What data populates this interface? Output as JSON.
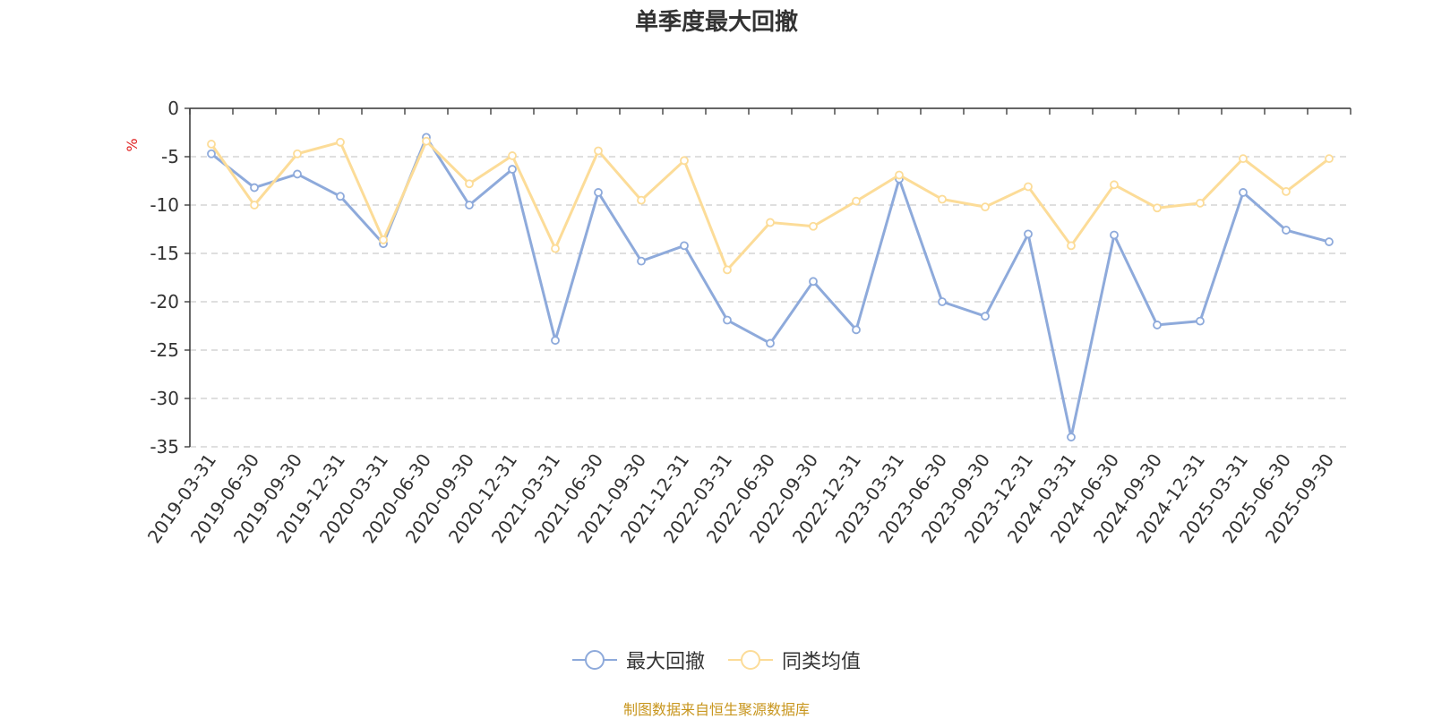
{
  "chart_data": {
    "type": "line",
    "title": "单季度最大回撤",
    "ylabel": "%",
    "ylim": [
      -35,
      0
    ],
    "yticks": [
      0,
      -5,
      -10,
      -15,
      -20,
      -25,
      -30,
      -35
    ],
    "grid": true,
    "legend_position": "bottom-center",
    "categories": [
      "2019-03-31",
      "2019-06-30",
      "2019-09-30",
      "2019-12-31",
      "2020-03-31",
      "2020-06-30",
      "2020-09-30",
      "2020-12-31",
      "2021-03-31",
      "2021-06-30",
      "2021-09-30",
      "2021-12-31",
      "2022-03-31",
      "2022-06-30",
      "2022-09-30",
      "2022-12-31",
      "2023-03-31",
      "2023-06-30",
      "2023-09-30",
      "2023-12-31",
      "2024-03-31",
      "2024-06-30",
      "2024-09-30",
      "2024-12-31",
      "2025-03-31",
      "2025-06-30",
      "2025-09-30"
    ],
    "series": [
      {
        "name": "最大回撤",
        "color": "#8eaadb",
        "values": [
          -4.7,
          -8.2,
          -6.8,
          -9.1,
          -14.0,
          -3.0,
          -10.0,
          -6.3,
          -24.0,
          -8.7,
          -15.8,
          -14.2,
          -21.9,
          -24.3,
          -17.9,
          -22.9,
          -7.3,
          -20.0,
          -21.5,
          -13.0,
          -34.0,
          -13.1,
          -22.4,
          -22.0,
          -8.7,
          -12.6,
          -13.8
        ]
      },
      {
        "name": "同类均值",
        "color": "#fcdc98",
        "values": [
          -3.7,
          -10.0,
          -4.7,
          -3.5,
          -13.6,
          -3.4,
          -7.8,
          -4.9,
          -14.5,
          -4.4,
          -9.5,
          -5.4,
          -16.7,
          -11.8,
          -12.2,
          -9.6,
          -6.9,
          -9.4,
          -10.2,
          -8.1,
          -14.2,
          -7.9,
          -10.3,
          -9.8,
          -5.2,
          -8.6,
          -5.2
        ]
      }
    ]
  },
  "source_note": "制图数据来自恒生聚源数据库"
}
